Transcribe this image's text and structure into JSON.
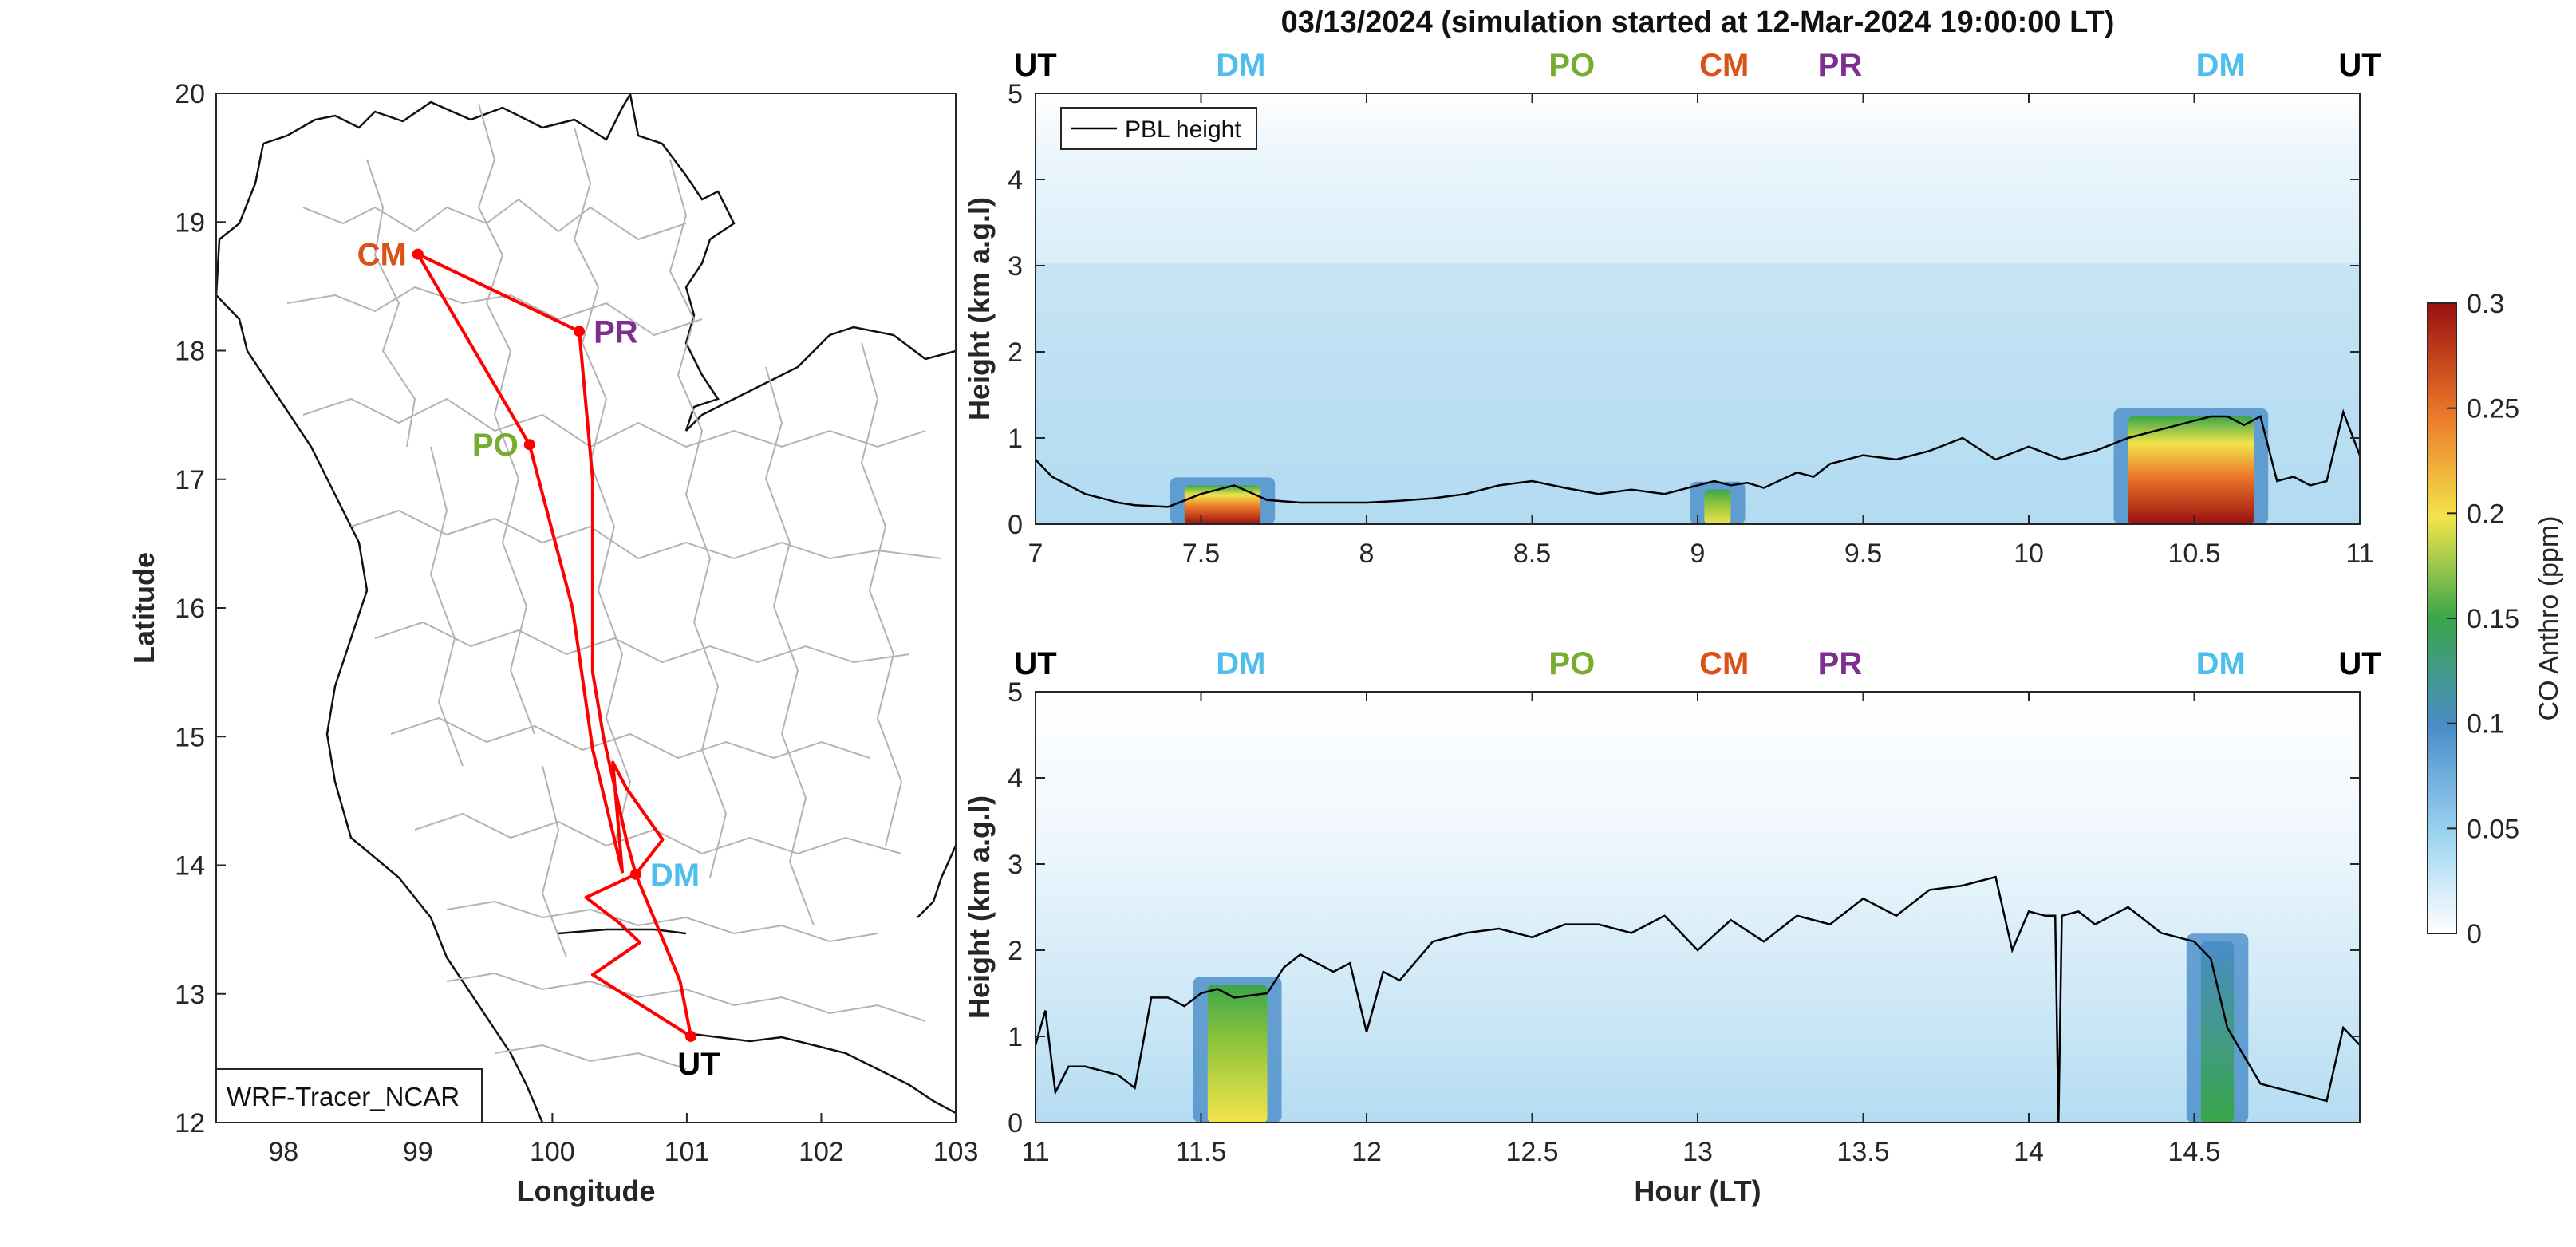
{
  "chart_data": [
    {
      "type": "map",
      "xlabel": "Longitude",
      "ylabel": "Latitude",
      "xlim": [
        97.5,
        103
      ],
      "ylim": [
        12,
        20
      ],
      "xticks": [
        "98",
        "99",
        "100",
        "101",
        "102",
        "103"
      ],
      "yticks": [
        "12",
        "13",
        "14",
        "15",
        "16",
        "17",
        "18",
        "19",
        "20"
      ],
      "legend_box": "WRF-Tracer_NCAR",
      "stations": [
        {
          "code": "CM",
          "lon": 99.0,
          "lat": 18.75,
          "color": "#d95319"
        },
        {
          "code": "PR",
          "lon": 100.2,
          "lat": 18.15,
          "color": "#7e2f8e"
        },
        {
          "code": "PO",
          "lon": 99.83,
          "lat": 17.27,
          "color": "#77ac30"
        },
        {
          "code": "DM",
          "lon": 100.62,
          "lat": 13.93,
          "color": "#4dbeee"
        },
        {
          "code": "UT",
          "lon": 101.03,
          "lat": 12.67,
          "color": "#000000"
        }
      ],
      "flight_track": {
        "color": "#ff0000",
        "lon": [
          101.03,
          100.3,
          100.65,
          100.5,
          100.25,
          100.62,
          100.82,
          100.55,
          100.45,
          100.52,
          100.3,
          100.15,
          99.83,
          99.0,
          100.2,
          100.3,
          100.3,
          100.38,
          100.55,
          100.62,
          100.95,
          101.03
        ],
        "lat": [
          12.67,
          13.15,
          13.4,
          13.55,
          13.75,
          13.93,
          14.2,
          14.6,
          14.8,
          13.95,
          14.9,
          16.0,
          17.27,
          18.75,
          18.15,
          17.0,
          15.5,
          15.0,
          14.2,
          13.93,
          13.1,
          12.67
        ]
      }
    },
    {
      "type": "heatmap",
      "title": "03/13/2024 (simulation started at 12-Mar-2024 19:00:00 LT)",
      "xlabel": "",
      "ylabel": "Height (km a.g.l)",
      "xlim": [
        7,
        11
      ],
      "ylim": [
        0,
        5
      ],
      "xticks": [
        "7",
        "7.5",
        "8",
        "8.5",
        "9",
        "9.5",
        "10",
        "10.5",
        "11"
      ],
      "yticks": [
        "0",
        "1",
        "2",
        "3",
        "4",
        "5"
      ],
      "legend": {
        "label": "PBL height",
        "placement": "top-left"
      },
      "station_markers": [
        {
          "code": "UT",
          "hour": 7.0,
          "color": "#000000"
        },
        {
          "code": "DM",
          "hour": 7.62,
          "color": "#4dbeee"
        },
        {
          "code": "PO",
          "hour": 8.62,
          "color": "#77ac30"
        },
        {
          "code": "CM",
          "hour": 9.08,
          "color": "#d95319"
        },
        {
          "code": "PR",
          "hour": 9.43,
          "color": "#7e2f8e"
        },
        {
          "code": "DM",
          "hour": 10.58,
          "color": "#4dbeee"
        },
        {
          "code": "UT",
          "hour": 11.0,
          "color": "#000000"
        }
      ],
      "pbl_height": {
        "hour": [
          7.0,
          7.05,
          7.1,
          7.15,
          7.2,
          7.25,
          7.3,
          7.4,
          7.5,
          7.6,
          7.7,
          7.8,
          7.9,
          8.0,
          8.1,
          8.2,
          8.3,
          8.4,
          8.5,
          8.6,
          8.7,
          8.8,
          8.9,
          9.0,
          9.05,
          9.1,
          9.15,
          9.2,
          9.3,
          9.35,
          9.4,
          9.5,
          9.6,
          9.7,
          9.8,
          9.9,
          10.0,
          10.1,
          10.2,
          10.3,
          10.4,
          10.5,
          10.55,
          10.6,
          10.65,
          10.7,
          10.75,
          10.8,
          10.85,
          10.9,
          10.95,
          11.0
        ],
        "km": [
          0.75,
          0.55,
          0.45,
          0.35,
          0.3,
          0.25,
          0.22,
          0.2,
          0.35,
          0.45,
          0.28,
          0.25,
          0.25,
          0.25,
          0.27,
          0.3,
          0.35,
          0.45,
          0.5,
          0.42,
          0.35,
          0.4,
          0.35,
          0.45,
          0.5,
          0.45,
          0.48,
          0.42,
          0.6,
          0.55,
          0.7,
          0.8,
          0.75,
          0.85,
          1.0,
          0.75,
          0.9,
          0.75,
          0.85,
          1.0,
          1.1,
          1.2,
          1.25,
          1.25,
          1.15,
          1.25,
          0.5,
          0.55,
          0.45,
          0.5,
          1.3,
          0.8
        ]
      },
      "co_plumes_ppm": [
        {
          "hour_start": 7.45,
          "hour_end": 7.68,
          "top_km": 0.45,
          "peak_ppm": 0.3
        },
        {
          "hour_start": 9.02,
          "hour_end": 9.1,
          "top_km": 0.4,
          "peak_ppm": 0.15
        },
        {
          "hour_start": 10.3,
          "hour_end": 10.68,
          "top_km": 1.25,
          "peak_ppm": 0.28
        }
      ]
    },
    {
      "type": "heatmap",
      "xlabel": "Hour (LT)",
      "ylabel": "Height (km a.g.l)",
      "xlim": [
        11,
        15
      ],
      "ylim": [
        0,
        5
      ],
      "xticks": [
        "11",
        "11.5",
        "12",
        "12.5",
        "13",
        "13.5",
        "14",
        "14.5"
      ],
      "yticks": [
        "0",
        "1",
        "2",
        "3",
        "4",
        "5"
      ],
      "station_markers": [
        {
          "code": "UT",
          "hour": 11.0,
          "color": "#000000"
        },
        {
          "code": "DM",
          "hour": 11.62,
          "color": "#4dbeee"
        },
        {
          "code": "PO",
          "hour": 12.62,
          "color": "#77ac30"
        },
        {
          "code": "CM",
          "hour": 13.08,
          "color": "#d95319"
        },
        {
          "code": "PR",
          "hour": 13.43,
          "color": "#7e2f8e"
        },
        {
          "code": "DM",
          "hour": 14.58,
          "color": "#4dbeee"
        },
        {
          "code": "UT",
          "hour": 15.0,
          "color": "#000000"
        }
      ],
      "pbl_height": {
        "hour": [
          11.0,
          11.03,
          11.06,
          11.1,
          11.15,
          11.2,
          11.25,
          11.3,
          11.35,
          11.4,
          11.45,
          11.5,
          11.55,
          11.6,
          11.7,
          11.75,
          11.8,
          11.9,
          11.95,
          12.0,
          12.05,
          12.1,
          12.2,
          12.3,
          12.4,
          12.5,
          12.6,
          12.7,
          12.8,
          12.9,
          13.0,
          13.1,
          13.2,
          13.3,
          13.4,
          13.5,
          13.6,
          13.7,
          13.8,
          13.9,
          13.95,
          14.0,
          14.05,
          14.08,
          14.09,
          14.1,
          14.15,
          14.2,
          14.3,
          14.4,
          14.5,
          14.55,
          14.6,
          14.7,
          14.8,
          14.9,
          14.95,
          15.0
        ],
        "km": [
          0.9,
          1.3,
          0.35,
          0.65,
          0.65,
          0.6,
          0.55,
          0.4,
          1.45,
          1.45,
          1.35,
          1.5,
          1.55,
          1.45,
          1.5,
          1.8,
          1.95,
          1.75,
          1.85,
          1.05,
          1.75,
          1.65,
          2.1,
          2.2,
          2.25,
          2.15,
          2.3,
          2.3,
          2.2,
          2.4,
          2.0,
          2.35,
          2.1,
          2.4,
          2.3,
          2.6,
          2.4,
          2.7,
          2.75,
          2.85,
          2.0,
          2.45,
          2.4,
          2.4,
          0.0,
          2.4,
          2.45,
          2.3,
          2.5,
          2.2,
          2.1,
          1.9,
          1.1,
          0.45,
          0.35,
          0.25,
          1.1,
          0.9
        ]
      },
      "co_plumes_ppm": [
        {
          "hour_start": 11.52,
          "hour_end": 11.7,
          "top_km": 1.6,
          "peak_ppm": 0.18
        },
        {
          "hour_start": 14.52,
          "hour_end": 14.62,
          "top_km": 2.1,
          "peak_ppm": 0.12
        }
      ]
    },
    {
      "type": "colorbar",
      "label": "CO Anthro (ppm)",
      "range": [
        0,
        0.3
      ],
      "ticks": [
        "0",
        "0.05",
        "0.1",
        "0.15",
        "0.2",
        "0.25",
        "0.3"
      ],
      "colormap_stops": [
        "#ffffff",
        "#9ad3f0",
        "#4a8cc8",
        "#3aa64a",
        "#f2e44a",
        "#ec7a2a",
        "#9a1010"
      ]
    }
  ]
}
